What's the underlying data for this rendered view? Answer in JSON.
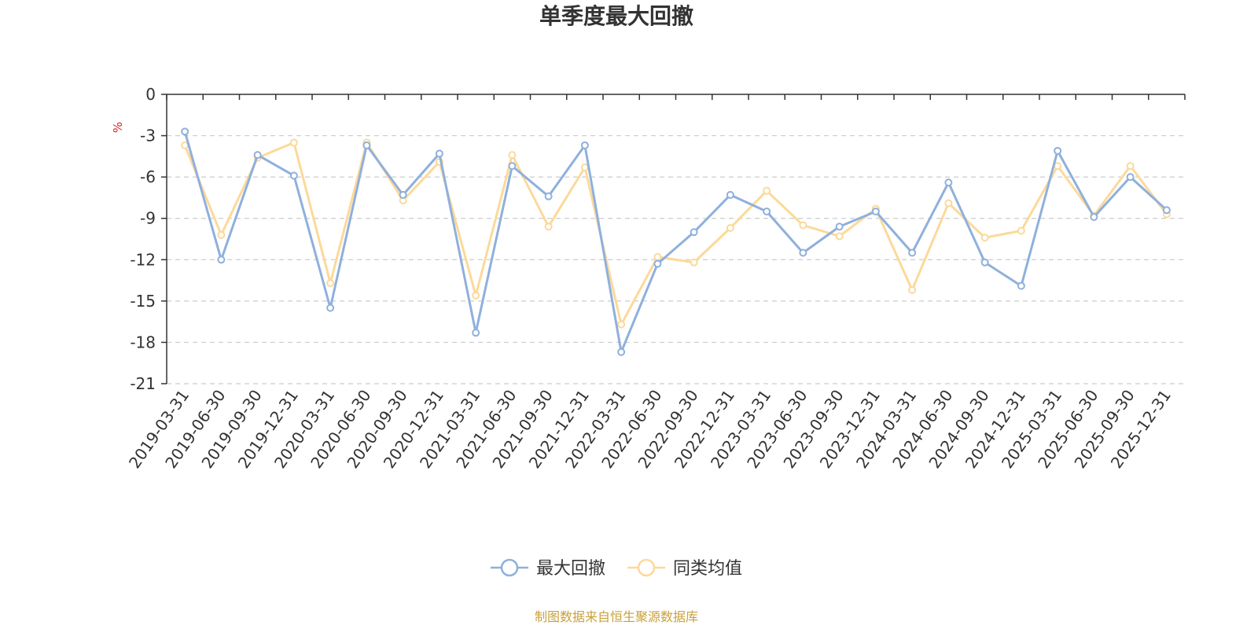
{
  "chart_data": {
    "type": "line",
    "title": "单季度最大回撤",
    "ylabel": "%",
    "xlabel": "",
    "ylim": [
      -21,
      0
    ],
    "yticks": [
      0,
      -3,
      -6,
      -9,
      -12,
      -15,
      -18,
      -21
    ],
    "grid": true,
    "legend_position": "bottom",
    "categories": [
      "2019-03-31",
      "2019-06-30",
      "2019-09-30",
      "2019-12-31",
      "2020-03-31",
      "2020-06-30",
      "2020-09-30",
      "2020-12-31",
      "2021-03-31",
      "2021-06-30",
      "2021-09-30",
      "2021-12-31",
      "2022-03-31",
      "2022-06-30",
      "2022-09-30",
      "2022-12-31",
      "2023-03-31",
      "2023-06-30",
      "2023-09-30",
      "2023-12-31",
      "2024-03-31",
      "2024-06-30",
      "2024-09-30",
      "2024-12-31",
      "2025-03-31",
      "2025-06-30",
      "2025-09-30",
      "2025-12-31"
    ],
    "series": [
      {
        "name": "最大回撤",
        "color": "#8fb0dc",
        "values": [
          -2.7,
          -12.0,
          -4.4,
          -5.9,
          -15.5,
          -3.7,
          -7.3,
          -4.3,
          -17.3,
          -5.2,
          -7.4,
          -3.7,
          -18.7,
          -12.3,
          -10.0,
          -7.3,
          -8.5,
          -11.5,
          -9.6,
          -8.5,
          -11.5,
          -6.4,
          -12.2,
          -13.9,
          -4.1,
          -8.9,
          -6.0,
          -8.4
        ]
      },
      {
        "name": "同类均值",
        "color": "#fcd99a",
        "values": [
          -3.7,
          -10.2,
          -4.6,
          -3.5,
          -13.7,
          -3.5,
          -7.7,
          -4.9,
          -14.6,
          -4.4,
          -9.6,
          -5.3,
          -16.7,
          -11.8,
          -12.2,
          -9.7,
          -7.0,
          -9.5,
          -10.3,
          -8.3,
          -14.2,
          -7.9,
          -10.4,
          -9.9,
          -5.2,
          -8.8,
          -5.2,
          -8.7
        ]
      }
    ]
  },
  "footer": {
    "source": "制图数据来自恒生聚源数据库"
  }
}
